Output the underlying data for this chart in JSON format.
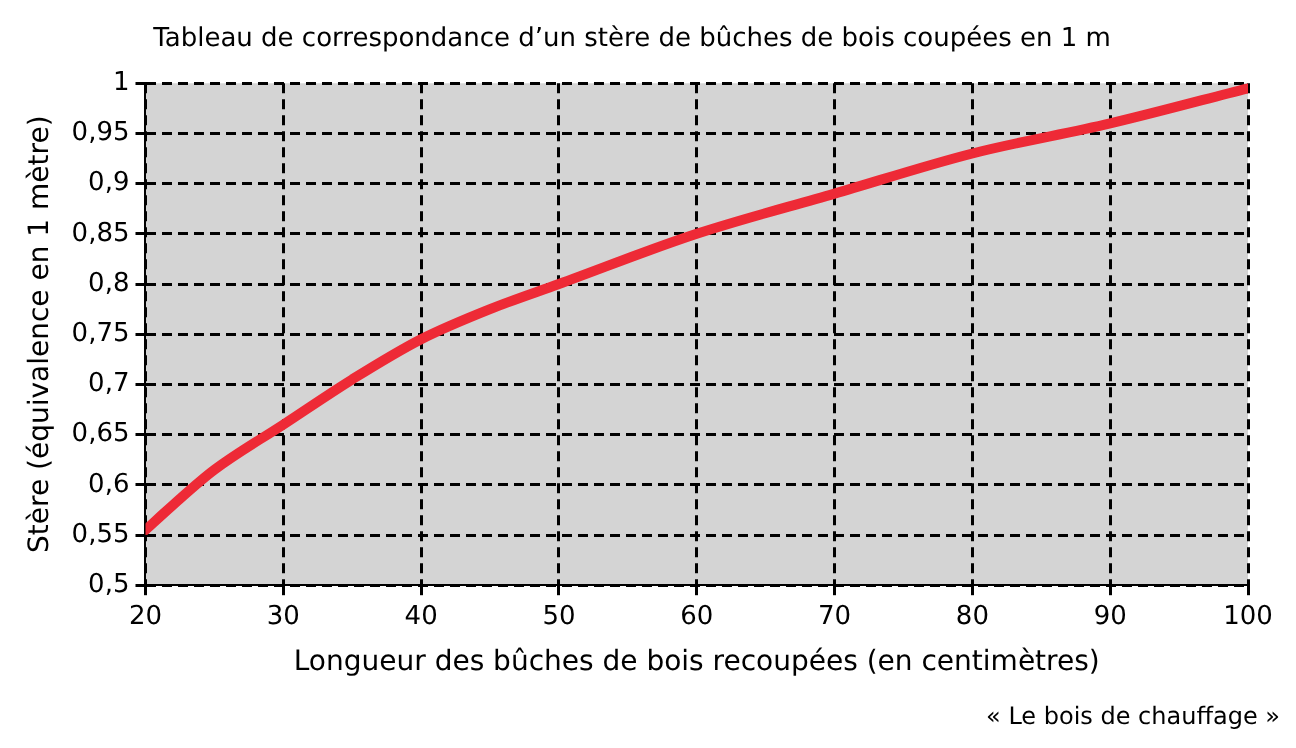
{
  "chart_data": {
    "type": "line",
    "title": "Tableau de correspondance d’un stère de bûches de bois coupées en 1 m",
    "xlabel": "Longueur des bûches de bois recoupées (en centimètres)",
    "ylabel": "Stère (équivalence en 1 mètre)",
    "annotations": [
      "« Le bois de chauffage »"
    ],
    "x": [
      20,
      22,
      25,
      30,
      35,
      40,
      45,
      50,
      60,
      70,
      80,
      90,
      100
    ],
    "series": [
      {
        "color": "#ee2a36",
        "values": [
          0.555,
          0.58,
          0.615,
          0.66,
          0.705,
          0.745,
          0.775,
          0.8,
          0.85,
          0.89,
          0.93,
          0.96,
          0.995
        ]
      }
    ],
    "xlim": [
      20,
      100
    ],
    "xticks": [
      20,
      30,
      40,
      50,
      60,
      70,
      80,
      90,
      100
    ],
    "ylim": [
      0.5,
      1
    ],
    "yticks": [
      {
        "value": 0.5,
        "label": "0,5"
      },
      {
        "value": 0.55,
        "label": "0,55"
      },
      {
        "value": 0.6,
        "label": "0,6"
      },
      {
        "value": 0.65,
        "label": "0,65"
      },
      {
        "value": 0.7,
        "label": "0,7"
      },
      {
        "value": 0.75,
        "label": "0,75"
      },
      {
        "value": 0.8,
        "label": "0,8"
      },
      {
        "value": 0.85,
        "label": "0,85"
      },
      {
        "value": 0.9,
        "label": "0,9"
      },
      {
        "value": 0.95,
        "label": "0,95"
      },
      1
    ],
    "grid": true,
    "legend": false,
    "marker": "none",
    "line_style": "solid"
  }
}
